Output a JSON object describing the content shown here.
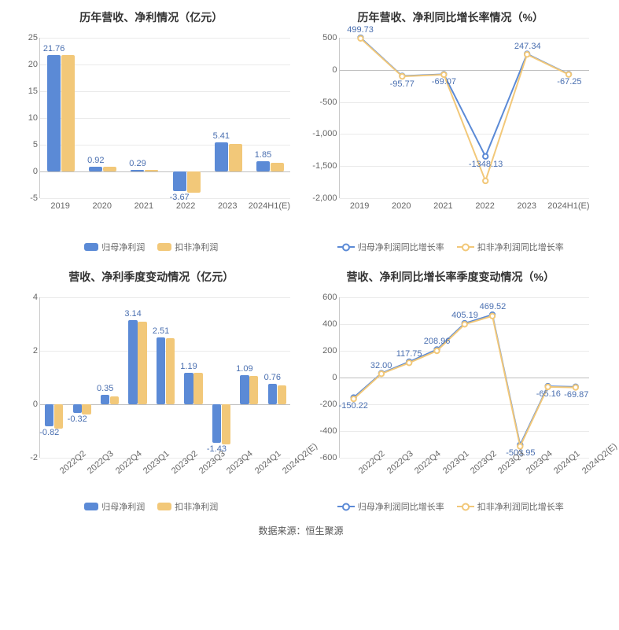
{
  "colors": {
    "series1": "#5b8ad6",
    "series2": "#f2c879",
    "grid": "#eaeaea",
    "axis": "#c9c9c9",
    "text": "#666666",
    "value_label": "#4a6fb0",
    "background": "#ffffff"
  },
  "chart1": {
    "type": "bar",
    "title": "历年营收、净利情况（亿元）",
    "categories": [
      "2019",
      "2020",
      "2021",
      "2022",
      "2023",
      "2024H1(E)"
    ],
    "series": [
      {
        "name": "归母净利润",
        "color": "#5b8ad6",
        "values": [
          21.76,
          0.92,
          0.29,
          -3.67,
          5.41,
          1.85
        ]
      },
      {
        "name": "扣非净利润",
        "color": "#f2c879",
        "values": [
          21.7,
          0.85,
          0.25,
          -3.9,
          5.2,
          1.6
        ]
      }
    ],
    "value_labels": [
      21.76,
      0.92,
      0.29,
      -3.67,
      5.41,
      1.85
    ],
    "ylim": [
      -5,
      25
    ],
    "ytick_step": 5,
    "bar_width": 0.32,
    "xlabel_rotate": false,
    "title_fontsize": 14,
    "label_fontsize": 11
  },
  "chart2": {
    "type": "line",
    "title": "历年营收、净利同比增长率情况（%）",
    "categories": [
      "2019",
      "2020",
      "2021",
      "2022",
      "2023",
      "2024H1(E)"
    ],
    "series": [
      {
        "name": "归母净利润同比增长率",
        "color": "#5b8ad6",
        "values": [
          499.73,
          -95.77,
          -69.07,
          -1348.13,
          247.34,
          -67.25
        ]
      },
      {
        "name": "扣非净利润同比增长率",
        "color": "#f2c879",
        "values": [
          490.0,
          -102.0,
          -75.0,
          -1730.0,
          240.0,
          -72.0
        ]
      }
    ],
    "value_labels": [
      499.73,
      -95.77,
      -69.07,
      -1348.13,
      247.34,
      -67.25
    ],
    "ylim": [
      -2000,
      500
    ],
    "ytick_step": 500,
    "xlabel_rotate": false,
    "marker": "circle",
    "line_width": 2,
    "title_fontsize": 14,
    "label_fontsize": 11
  },
  "chart3": {
    "type": "bar",
    "title": "营收、净利季度变动情况（亿元）",
    "categories": [
      "2022Q2",
      "2022Q3",
      "2022Q4",
      "2023Q1",
      "2023Q2",
      "2023Q3",
      "2023Q4",
      "2024Q1",
      "2024Q2(E)"
    ],
    "series": [
      {
        "name": "归母净利润",
        "color": "#5b8ad6",
        "values": [
          -0.82,
          -0.32,
          0.35,
          3.14,
          2.51,
          1.19,
          -1.43,
          1.09,
          0.76
        ]
      },
      {
        "name": "扣非净利润",
        "color": "#f2c879",
        "values": [
          -0.9,
          -0.38,
          0.3,
          3.1,
          2.48,
          1.18,
          -1.5,
          1.05,
          0.72
        ]
      }
    ],
    "value_labels": [
      -0.82,
      -0.32,
      0.35,
      3.14,
      2.51,
      1.19,
      -1.43,
      1.09,
      0.76
    ],
    "ylim": [
      -2,
      4
    ],
    "ytick_step": 2,
    "bar_width": 0.32,
    "xlabel_rotate": true,
    "title_fontsize": 14,
    "label_fontsize": 11
  },
  "chart4": {
    "type": "line",
    "title": "营收、净利同比增长率季度变动情况（%）",
    "categories": [
      "2022Q2",
      "2022Q3",
      "2022Q4",
      "2023Q1",
      "2023Q2",
      "2023Q3",
      "2023Q4",
      "2024Q1",
      "2024Q2(E)"
    ],
    "series": [
      {
        "name": "归母净利润同比增长率",
        "color": "#5b8ad6",
        "values": [
          -150.22,
          32.0,
          117.75,
          208.96,
          405.19,
          469.52,
          -503.95,
          -65.16,
          -69.87
        ]
      },
      {
        "name": "扣非净利润同比增长率",
        "color": "#f2c879",
        "values": [
          -160.0,
          28.0,
          110.0,
          200.0,
          398.0,
          460.0,
          -515.0,
          -70.0,
          -74.0
        ]
      }
    ],
    "value_labels": [
      -150.22,
      32.0,
      117.75,
      208.96,
      405.19,
      469.52,
      -503.95,
      -65.16,
      -69.87
    ],
    "ylim": [
      -600,
      600
    ],
    "ytick_step": 200,
    "xlabel_rotate": true,
    "marker": "circle",
    "line_width": 2,
    "title_fontsize": 14,
    "label_fontsize": 11
  },
  "footer": "数据来源：恒生聚源"
}
